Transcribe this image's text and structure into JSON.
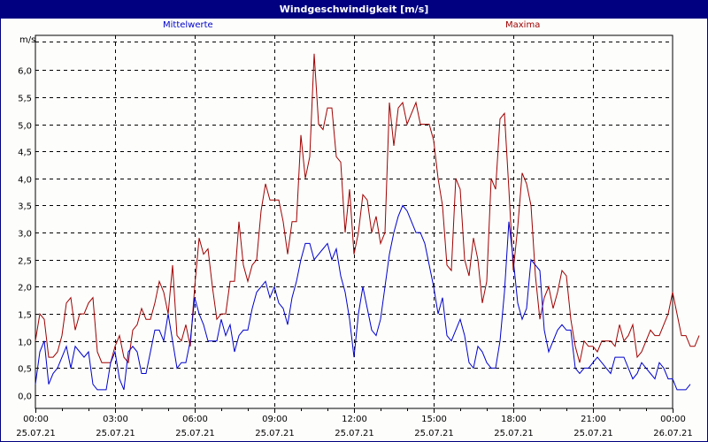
{
  "window": {
    "title": "Windgeschwindigkeit [m/s]"
  },
  "legend": {
    "mean_label": "Mittelwerte",
    "max_label": "Maxima",
    "mean_color": "#0000cc",
    "max_color": "#a00000"
  },
  "axes": {
    "y_unit": "m/s",
    "y_ticks": [
      "0,0",
      "0,5",
      "1,0",
      "1,5",
      "2,0",
      "2,5",
      "3,0",
      "3,5",
      "4,0",
      "4,5",
      "5,0",
      "5,5",
      "6,0"
    ],
    "x_ticks": [
      {
        "time": "00:00",
        "date": "25.07.21"
      },
      {
        "time": "03:00",
        "date": "25.07.21"
      },
      {
        "time": "06:00",
        "date": "25.07.21"
      },
      {
        "time": "09:00",
        "date": "25.07.21"
      },
      {
        "time": "12:00",
        "date": "25.07.21"
      },
      {
        "time": "15:00",
        "date": "25.07.21"
      },
      {
        "time": "18:00",
        "date": "25.07.21"
      },
      {
        "time": "21:00",
        "date": "25.07.21"
      },
      {
        "time": "00:00",
        "date": "26.07.21"
      }
    ]
  },
  "chart_data": {
    "type": "line",
    "title": "Windgeschwindigkeit [m/s]",
    "xlabel": "",
    "ylabel": "m/s",
    "ylim": [
      -0.2,
      6.5
    ],
    "xrange": [
      "25.07.21 00:00",
      "26.07.21 00:00"
    ],
    "x_step_minutes": 10,
    "grid": true,
    "legend_position": "top",
    "series": [
      {
        "name": "Mittelwerte",
        "color": "#0000cc",
        "values": [
          0.2,
          0.8,
          1.0,
          0.2,
          0.4,
          0.5,
          0.7,
          0.9,
          0.5,
          0.9,
          0.8,
          0.7,
          0.8,
          0.2,
          0.1,
          0.1,
          0.1,
          0.6,
          0.8,
          0.3,
          0.1,
          0.8,
          0.9,
          0.8,
          0.4,
          0.4,
          0.8,
          1.2,
          1.2,
          1.0,
          1.5,
          1.0,
          0.5,
          0.6,
          0.6,
          1.0,
          1.8,
          1.5,
          1.3,
          1.0,
          1.0,
          1.0,
          1.4,
          1.1,
          1.3,
          0.8,
          1.1,
          1.2,
          1.2,
          1.6,
          1.9,
          2.0,
          2.1,
          1.8,
          2.0,
          1.7,
          1.6,
          1.3,
          1.8,
          2.1,
          2.5,
          2.8,
          2.8,
          2.5,
          2.6,
          2.7,
          2.8,
          2.5,
          2.7,
          2.2,
          1.9,
          1.4,
          0.7,
          1.5,
          2.0,
          1.6,
          1.2,
          1.1,
          1.4,
          2.0,
          2.6,
          3.0,
          3.3,
          3.5,
          3.4,
          3.2,
          3.0,
          3.0,
          2.8,
          2.4,
          2.0,
          1.5,
          1.8,
          1.1,
          1.0,
          1.2,
          1.4,
          1.1,
          0.6,
          0.5,
          0.9,
          0.8,
          0.6,
          0.5,
          0.5,
          1.0,
          1.9,
          3.2,
          2.5,
          1.7,
          1.4,
          1.6,
          2.5,
          2.4,
          2.3,
          1.2,
          0.8,
          1.0,
          1.2,
          1.3,
          1.2,
          1.2,
          0.5,
          0.4,
          0.5,
          0.5,
          0.6,
          0.7,
          0.6,
          0.5,
          0.4,
          0.7,
          0.7,
          0.7,
          0.5,
          0.3,
          0.4,
          0.6,
          0.5,
          0.4,
          0.3,
          0.6,
          0.5,
          0.3,
          0.3,
          0.1,
          0.1,
          0.1,
          0.2
        ]
      },
      {
        "name": "Maxima",
        "color": "#a00000",
        "values": [
          1.0,
          1.5,
          1.4,
          0.7,
          0.7,
          0.8,
          1.1,
          1.7,
          1.8,
          1.2,
          1.5,
          1.5,
          1.7,
          1.8,
          0.8,
          0.6,
          0.6,
          0.6,
          0.9,
          1.1,
          0.7,
          0.6,
          1.2,
          1.3,
          1.6,
          1.4,
          1.4,
          1.7,
          2.1,
          1.9,
          1.5,
          2.4,
          1.1,
          1.0,
          1.3,
          0.9,
          2.0,
          2.9,
          2.6,
          2.7,
          2.0,
          1.4,
          1.5,
          1.5,
          2.1,
          2.1,
          3.2,
          2.4,
          2.1,
          2.4,
          2.5,
          3.4,
          3.9,
          3.6,
          3.6,
          3.6,
          3.2,
          2.6,
          3.2,
          3.2,
          4.8,
          4.0,
          4.4,
          6.3,
          5.0,
          4.9,
          5.3,
          5.3,
          4.4,
          4.3,
          3.0,
          3.8,
          2.6,
          3.0,
          3.7,
          3.6,
          3.0,
          3.3,
          2.8,
          3.0,
          5.4,
          4.6,
          5.3,
          5.4,
          5.0,
          5.2,
          5.4,
          5.0,
          5.0,
          5.0,
          4.7,
          4.0,
          3.5,
          2.4,
          2.3,
          4.0,
          3.8,
          2.5,
          2.2,
          2.9,
          2.5,
          1.7,
          2.1,
          4.0,
          3.8,
          5.1,
          5.2,
          3.8,
          2.3,
          3.1,
          4.1,
          3.9,
          3.5,
          2.2,
          1.4,
          1.8,
          2.0,
          1.6,
          1.9,
          2.3,
          2.2,
          1.4,
          0.9,
          0.6,
          1.0,
          0.9,
          0.9,
          0.8,
          1.0,
          1.0,
          1.0,
          0.9,
          1.3,
          1.0,
          1.1,
          1.3,
          0.7,
          0.8,
          1.0,
          1.2,
          1.1,
          1.1,
          1.3,
          1.5,
          1.9,
          1.5,
          1.1,
          1.1,
          0.9,
          0.9,
          1.1
        ]
      }
    ]
  }
}
